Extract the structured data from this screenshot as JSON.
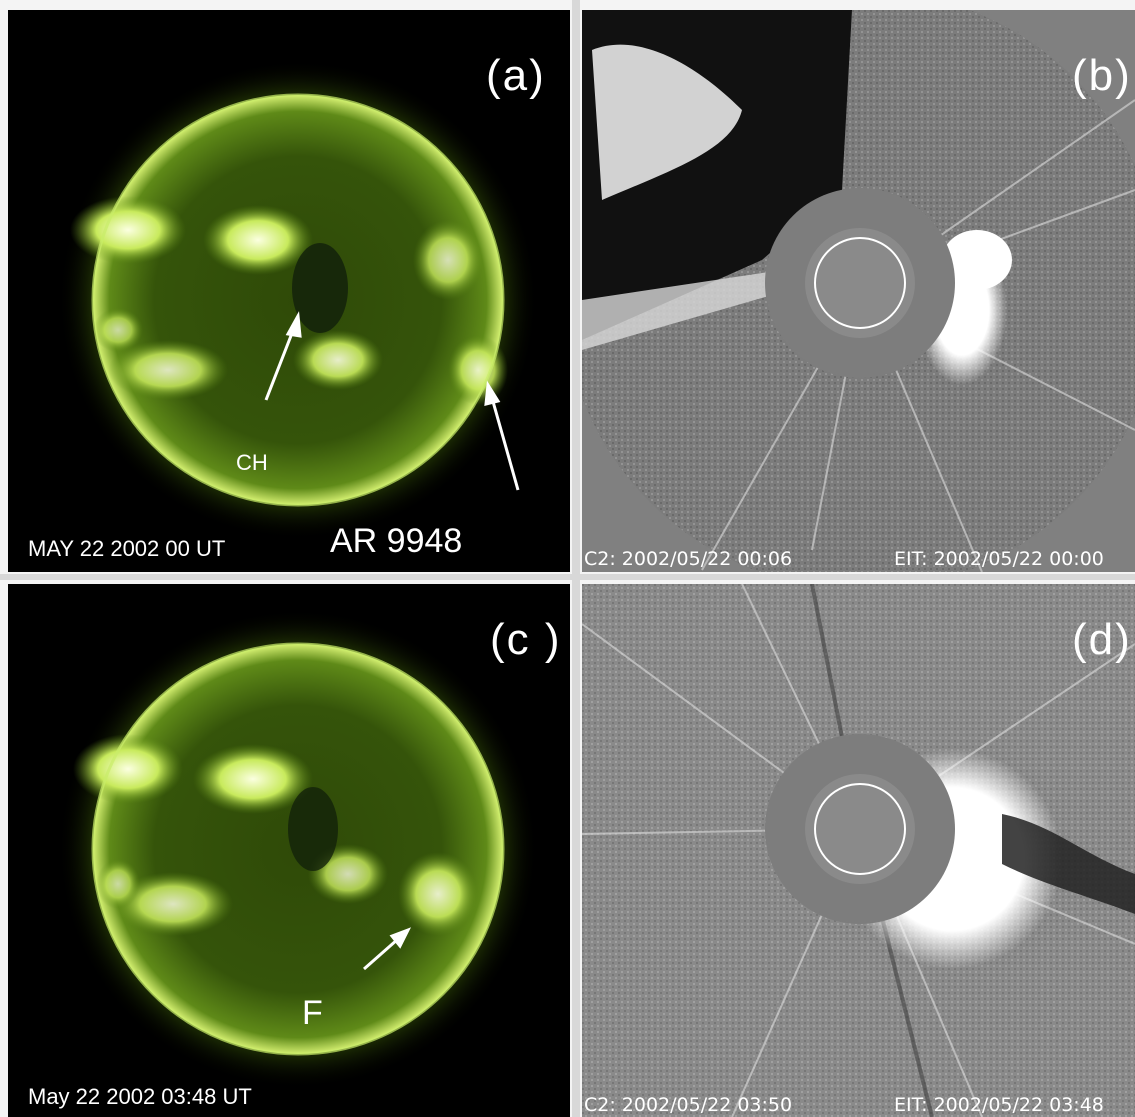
{
  "panels": {
    "a": {
      "label": "(a)",
      "date": "MAY 22 2002 00 UT",
      "annotations": {
        "ch": "CH",
        "ar": "AR 9948"
      }
    },
    "b": {
      "label": "(b)",
      "c2_time": "C2: 2002/05/22 00:06",
      "eit_time": "EIT: 2002/05/22 00:00"
    },
    "c": {
      "label": "(c )",
      "date": "May 22 2002 03:48 UT",
      "annotations": {
        "f": "F"
      }
    },
    "d": {
      "label": "(d)",
      "c2_time": "C2: 2002/05/22 03:50",
      "eit_time": "EIT: 2002/05/22 03:48"
    }
  },
  "colors": {
    "eit_green": "#9ccf3a",
    "background": "#000000",
    "c2_gray": "#7a7a7a",
    "occulter": "#7d7d7d"
  }
}
